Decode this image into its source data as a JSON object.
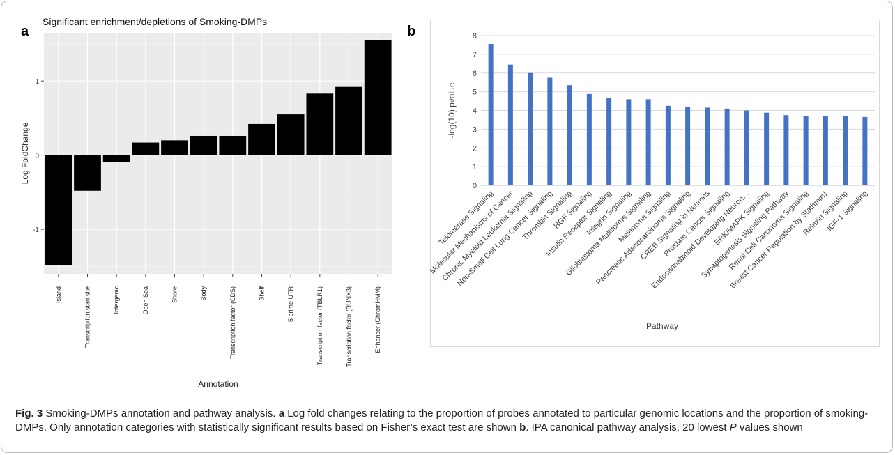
{
  "panel_a": {
    "letter": "a"
  },
  "panel_b": {
    "letter": "b"
  },
  "caption": {
    "fig_label": "Fig. 3",
    "text_1": " Smoking-DMPs annotation and pathway analysis. ",
    "letter_a": "a",
    "text_2": " Log fold changes relating to the proportion of probes annotated to particular genomic locations and the proportion of smoking-DMPs. Only annotation categories with statistically significant results based on Fisher’s exact test are shown ",
    "letter_b": "b",
    "text_3": ". IPA canonical pathway analysis, 20 lowest ",
    "p_symbol": "P",
    "text_4": " values shown"
  },
  "chart_data": [
    {
      "type": "bar",
      "title": "Significant enrichment/depletions of Smoking-DMPs",
      "xlabel": "Annotation",
      "ylabel": "Log FoldChange",
      "categories": [
        "Island",
        "Transcription start site",
        "Intergenic",
        "Open Sea",
        "Shore",
        "Body",
        "Transcription factor (CDS)",
        "Shelf",
        "5 prime UTR",
        "Transcription factor (TBLR1)",
        "Transcription factor (RUNX3)",
        "Enhancer (ChromHMM)"
      ],
      "values": [
        -1.48,
        -0.48,
        -0.09,
        0.17,
        0.2,
        0.26,
        0.26,
        0.42,
        0.55,
        0.83,
        0.92,
        1.55
      ],
      "ylim": [
        -1.6,
        1.65
      ],
      "yticks": [
        -1,
        0,
        1
      ],
      "color": "#000000",
      "background": "#ebebeb",
      "grid": true
    },
    {
      "type": "bar",
      "title": "",
      "xlabel": "Pathway",
      "ylabel": "-log(10) pvalue",
      "categories": [
        "Telomerase Signaling",
        "Molecular Mechanisms of Cancer",
        "Chronic Myeloid Leukemia Signaling",
        "Non-Small Cell Lung Cancer Signaling",
        "Thrombin Signaling",
        "HGF Signaling",
        "Insulin Receptor Signaling",
        "Integrin Signaling",
        "Glioblastoma Multiforme Signaling",
        "Melanoma Signaling",
        "Pancreatic Adenocarcinoma Signaling",
        "CREB Signaling in Neurons",
        "Prostate Cancer Signaling",
        "Endocannabinoid Developing Neuron…",
        "ERK/MAPK Signaling",
        "Synaptogenesis Signaling Pathway",
        "Renal Cell Carcinoma Signaling",
        "Breast Cancer Regulation by Stathmin1",
        "Relaxin Signaling",
        "IGF-1 Signaling"
      ],
      "values": [
        7.55,
        6.45,
        6.0,
        5.75,
        5.35,
        4.88,
        4.65,
        4.6,
        4.6,
        4.25,
        4.2,
        4.15,
        4.1,
        4.0,
        3.88,
        3.75,
        3.72,
        3.72,
        3.72,
        3.65
      ],
      "ylim": [
        0,
        8
      ],
      "yticks": [
        0,
        1,
        2,
        3,
        4,
        5,
        6,
        7,
        8
      ],
      "color": "#4472c4",
      "grid": true
    }
  ]
}
